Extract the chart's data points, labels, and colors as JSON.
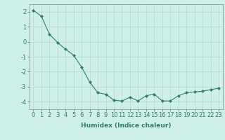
{
  "x": [
    0,
    1,
    2,
    3,
    4,
    5,
    6,
    7,
    8,
    9,
    10,
    11,
    12,
    13,
    14,
    15,
    16,
    17,
    18,
    19,
    20,
    21,
    22,
    23
  ],
  "y": [
    2.1,
    1.7,
    0.5,
    -0.05,
    -0.5,
    -0.9,
    -1.7,
    -2.7,
    -3.4,
    -3.5,
    -3.9,
    -3.95,
    -3.7,
    -3.95,
    -3.6,
    -3.5,
    -3.95,
    -3.95,
    -3.6,
    -3.4,
    -3.35,
    -3.3,
    -3.2,
    -3.1
  ],
  "xlabel": "Humidex (Indice chaleur)",
  "ylim": [
    -4.5,
    2.5
  ],
  "xlim": [
    -0.5,
    23.5
  ],
  "yticks": [
    -4,
    -3,
    -2,
    -1,
    0,
    1,
    2
  ],
  "xticks": [
    0,
    1,
    2,
    3,
    4,
    5,
    6,
    7,
    8,
    9,
    10,
    11,
    12,
    13,
    14,
    15,
    16,
    17,
    18,
    19,
    20,
    21,
    22,
    23
  ],
  "line_color": "#2e7d6e",
  "marker": "D",
  "marker_size": 2.0,
  "bg_color": "#cef0e8",
  "grid_color": "#b8dcd5",
  "xlabel_fontsize": 6.5,
  "tick_fontsize": 6.0
}
